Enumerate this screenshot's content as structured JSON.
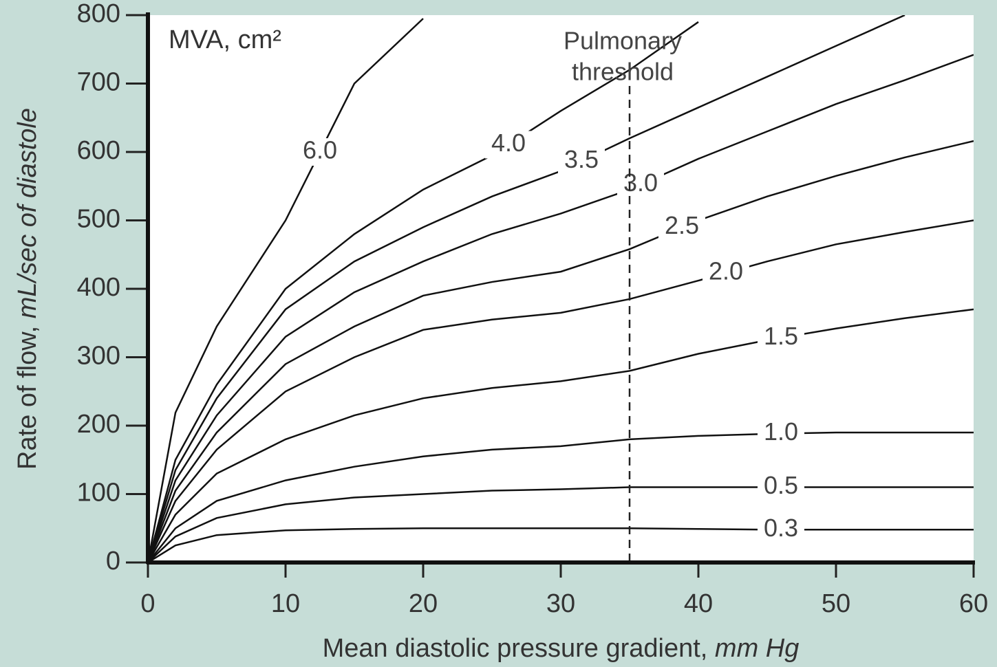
{
  "chart_data": {
    "type": "line",
    "legend_title": "MVA, cm²",
    "xlabel": [
      "Mean diastolic pressure gradient, ",
      "mm Hg"
    ],
    "ylabel": [
      "Rate of flow, ",
      "mL/sec of diastole"
    ],
    "x": [
      0,
      2,
      5,
      10,
      15,
      20,
      25,
      30,
      35,
      40,
      45,
      50,
      55,
      60
    ],
    "series": [
      {
        "name": "6.0",
        "color": "#111111",
        "values": [
          0,
          219,
          345,
          500,
          700,
          795,
          null,
          null,
          null,
          null,
          null,
          null,
          null,
          null
        ]
      },
      {
        "name": "4.0",
        "color": "#111111",
        "values": [
          0,
          150,
          260,
          400,
          480,
          545,
          595,
          660,
          720,
          790,
          null,
          null,
          null,
          null
        ]
      },
      {
        "name": "3.5",
        "color": "#111111",
        "values": [
          0,
          135,
          240,
          370,
          440,
          490,
          535,
          572,
          620,
          665,
          710,
          755,
          800,
          null
        ]
      },
      {
        "name": "3.0",
        "color": "#111111",
        "values": [
          0,
          120,
          215,
          330,
          395,
          440,
          480,
          510,
          545,
          590,
          630,
          670,
          705,
          742
        ]
      },
      {
        "name": "2.5",
        "color": "#111111",
        "values": [
          0,
          105,
          190,
          290,
          345,
          390,
          410,
          425,
          458,
          500,
          535,
          565,
          592,
          616
        ]
      },
      {
        "name": "2.0",
        "color": "#111111",
        "values": [
          0,
          90,
          165,
          250,
          300,
          340,
          355,
          365,
          385,
          412,
          440,
          465,
          483,
          500
        ]
      },
      {
        "name": "1.5",
        "color": "#111111",
        "values": [
          0,
          70,
          130,
          180,
          215,
          240,
          255,
          265,
          280,
          305,
          325,
          342,
          357,
          370
        ]
      },
      {
        "name": "1.0",
        "color": "#111111",
        "values": [
          0,
          50,
          90,
          120,
          140,
          155,
          165,
          170,
          180,
          185,
          188,
          190,
          190,
          190
        ]
      },
      {
        "name": "0.5",
        "color": "#111111",
        "values": [
          0,
          38,
          65,
          85,
          95,
          100,
          105,
          107,
          110,
          110,
          110,
          110,
          110,
          110
        ]
      },
      {
        "name": "0.3",
        "color": "#111111",
        "values": [
          0,
          25,
          40,
          47,
          49,
          50,
          50,
          50,
          50,
          49,
          48,
          48,
          48,
          48
        ]
      }
    ],
    "threshold": {
      "x": 35,
      "label": [
        "Pulmonary",
        "threshold"
      ]
    },
    "xlim": [
      0,
      60
    ],
    "xticks": [
      0,
      10,
      20,
      30,
      40,
      50,
      60
    ],
    "ylim": [
      0,
      800
    ],
    "yticks": [
      0,
      100,
      200,
      300,
      400,
      500,
      600,
      700,
      800
    ]
  }
}
